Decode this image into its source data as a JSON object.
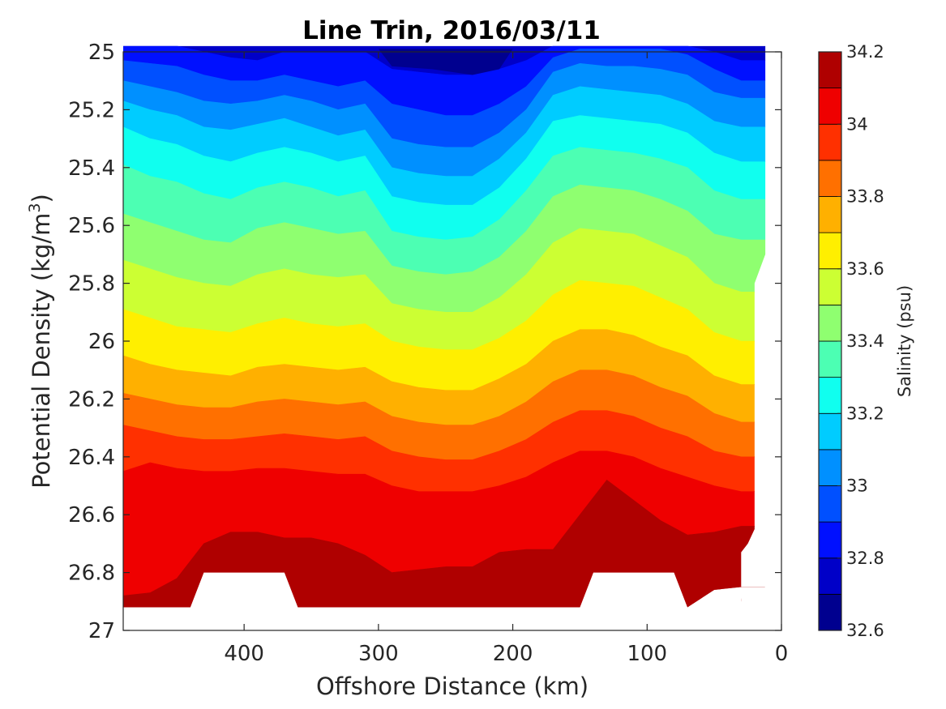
{
  "chart_data": {
    "type": "contourf",
    "title": "Line Trin, 2016/03/11",
    "xlabel": "Offshore Distance (km)",
    "ylabel_main": "Potential Density (kg/m",
    "ylabel_sup": "3",
    "ylabel_close": ")",
    "xlim": [
      490,
      0
    ],
    "ylim": [
      25,
      27
    ],
    "y_reversed": true,
    "x_reversed": true,
    "x_ticks": [
      400,
      300,
      200,
      100,
      0
    ],
    "y_ticks": [
      25,
      25.2,
      25.4,
      25.6,
      25.8,
      26,
      26.2,
      26.4,
      26.6,
      26.8,
      27
    ],
    "x_tick_labels": [
      "400",
      "300",
      "200",
      "100",
      "0"
    ],
    "y_tick_labels": [
      "25",
      "25.2",
      "25.4",
      "25.6",
      "25.8",
      "26",
      "26.2",
      "26.4",
      "26.6",
      "26.8",
      "27"
    ],
    "colorbar": {
      "label": "Salinity (psu)",
      "range": [
        32.6,
        34.2
      ],
      "levels": [
        32.6,
        32.7,
        32.8,
        32.9,
        33.0,
        33.1,
        33.2,
        33.3,
        33.4,
        33.5,
        33.6,
        33.7,
        33.8,
        33.9,
        34.0,
        34.1,
        34.2
      ],
      "ticks": [
        32.6,
        32.8,
        33,
        33.2,
        33.4,
        33.6,
        33.8,
        34,
        34.2
      ],
      "tick_labels": [
        "32.6",
        "32.8",
        "33",
        "33.2",
        "33.4",
        "33.6",
        "33.8",
        "34",
        "34.2"
      ],
      "colors": [
        "#00008f",
        "#0000c8",
        "#0010ff",
        "#0050ff",
        "#0090ff",
        "#00ccff",
        "#10ffef",
        "#4cffb3",
        "#8fff70",
        "#ccff33",
        "#ffef00",
        "#ffb000",
        "#ff7000",
        "#ff3000",
        "#ef0000",
        "#af0000"
      ]
    },
    "contour_boundaries": {
      "note_levels": [
        32.8,
        32.9,
        33.0,
        33.1,
        33.2,
        33.3,
        33.4,
        33.5,
        33.6,
        33.7,
        33.8,
        33.9,
        34.0,
        34.1
      ],
      "x": [
        490,
        470,
        450,
        430,
        410,
        390,
        370,
        350,
        330,
        310,
        290,
        270,
        250,
        230,
        210,
        190,
        170,
        150,
        130,
        110,
        90,
        70,
        50,
        30,
        12
      ],
      "y": [
        [
          24.98,
          24.98,
          24.98,
          25.0,
          25.02,
          25.03,
          25.0,
          25.0,
          25.0,
          25.0,
          25.06,
          25.07,
          25.08,
          25.08,
          25.06,
          25.03,
          24.98,
          24.98,
          24.98,
          24.98,
          24.98,
          24.98,
          25.0,
          25.03,
          25.03
        ],
        [
          25.03,
          25.04,
          25.05,
          25.08,
          25.1,
          25.1,
          25.08,
          25.1,
          25.12,
          25.1,
          25.18,
          25.2,
          25.22,
          25.22,
          25.18,
          25.12,
          25.02,
          24.99,
          24.99,
          24.99,
          24.99,
          25.01,
          25.06,
          25.1,
          25.1
        ],
        [
          25.1,
          25.12,
          25.14,
          25.17,
          25.18,
          25.17,
          25.15,
          25.17,
          25.2,
          25.18,
          25.3,
          25.32,
          25.33,
          25.33,
          25.28,
          25.2,
          25.07,
          25.04,
          25.05,
          25.05,
          25.06,
          25.08,
          25.14,
          25.16,
          25.16
        ],
        [
          25.17,
          25.2,
          25.22,
          25.26,
          25.27,
          25.25,
          25.23,
          25.26,
          25.29,
          25.27,
          25.4,
          25.42,
          25.43,
          25.43,
          25.37,
          25.28,
          25.15,
          25.12,
          25.13,
          25.14,
          25.15,
          25.18,
          25.24,
          25.26,
          25.26
        ],
        [
          25.26,
          25.3,
          25.32,
          25.36,
          25.38,
          25.35,
          25.33,
          25.35,
          25.38,
          25.36,
          25.5,
          25.52,
          25.53,
          25.53,
          25.47,
          25.37,
          25.24,
          25.22,
          25.23,
          25.24,
          25.25,
          25.28,
          25.35,
          25.38,
          25.38
        ],
        [
          25.39,
          25.43,
          25.45,
          25.49,
          25.51,
          25.47,
          25.45,
          25.47,
          25.5,
          25.48,
          25.62,
          25.64,
          25.65,
          25.64,
          25.58,
          25.48,
          25.36,
          25.33,
          25.34,
          25.35,
          25.37,
          25.4,
          25.48,
          25.51,
          25.51
        ],
        [
          25.56,
          25.59,
          25.62,
          25.65,
          25.66,
          25.61,
          25.59,
          25.61,
          25.63,
          25.62,
          25.74,
          25.76,
          25.77,
          25.76,
          25.71,
          25.62,
          25.5,
          25.46,
          25.47,
          25.48,
          25.51,
          25.55,
          25.63,
          25.65,
          25.65
        ],
        [
          25.72,
          25.75,
          25.78,
          25.8,
          25.81,
          25.77,
          25.75,
          25.77,
          25.78,
          25.77,
          25.87,
          25.89,
          25.9,
          25.9,
          25.85,
          25.77,
          25.66,
          25.61,
          25.62,
          25.63,
          25.67,
          25.71,
          25.8,
          25.83,
          25.83
        ],
        [
          25.89,
          25.92,
          25.95,
          25.96,
          25.97,
          25.94,
          25.92,
          25.94,
          25.95,
          25.94,
          26.0,
          26.02,
          26.03,
          26.03,
          25.99,
          25.93,
          25.84,
          25.79,
          25.8,
          25.81,
          25.85,
          25.89,
          25.97,
          26.0,
          26.0
        ],
        [
          26.05,
          26.08,
          26.1,
          26.11,
          26.12,
          26.09,
          26.08,
          26.09,
          26.1,
          26.09,
          26.14,
          26.16,
          26.17,
          26.17,
          26.13,
          26.08,
          26.0,
          25.96,
          25.96,
          25.98,
          26.02,
          26.05,
          26.12,
          26.15,
          26.15
        ],
        [
          26.18,
          26.2,
          26.22,
          26.23,
          26.23,
          26.21,
          26.2,
          26.21,
          26.22,
          26.21,
          26.26,
          26.28,
          26.29,
          26.29,
          26.26,
          26.21,
          26.14,
          26.1,
          26.1,
          26.12,
          26.16,
          26.19,
          26.25,
          26.28,
          26.28
        ],
        [
          26.29,
          26.31,
          26.33,
          26.34,
          26.34,
          26.33,
          26.32,
          26.33,
          26.34,
          26.33,
          26.38,
          26.4,
          26.41,
          26.41,
          26.38,
          26.34,
          26.28,
          26.24,
          26.24,
          26.26,
          26.3,
          26.33,
          26.38,
          26.4,
          26.4
        ],
        [
          26.45,
          26.42,
          26.44,
          26.45,
          26.45,
          26.44,
          26.44,
          26.45,
          26.46,
          26.46,
          26.5,
          26.52,
          26.52,
          26.52,
          26.5,
          26.47,
          26.42,
          26.38,
          26.38,
          26.4,
          26.44,
          26.47,
          26.5,
          26.52,
          26.52
        ],
        [
          26.88,
          26.87,
          26.82,
          26.7,
          26.66,
          26.66,
          26.68,
          26.68,
          26.7,
          26.74,
          26.8,
          26.79,
          26.78,
          26.78,
          26.73,
          26.72,
          26.72,
          26.6,
          26.48,
          26.55,
          26.62,
          26.67,
          26.66,
          26.64,
          26.64
        ],
        [
          26.92,
          26.92,
          26.92,
          26.92,
          26.92,
          26.92,
          26.92,
          26.92,
          26.92,
          26.92,
          26.92,
          26.92,
          26.92,
          26.92,
          26.92,
          26.92,
          26.92,
          26.92,
          26.92,
          26.92,
          26.92,
          26.92,
          26.86,
          26.85,
          26.85
        ]
      ],
      "data_region_right_edge_x": [
        12,
        12,
        12,
        12,
        20,
        20,
        20,
        20,
        20,
        25,
        30,
        30
      ],
      "data_region_right_edge_y": [
        24.98,
        25.3,
        25.5,
        25.7,
        25.8,
        26.0,
        26.4,
        26.6,
        26.65,
        26.7,
        26.73,
        26.9
      ],
      "bottom_gaps": [
        {
          "x_start": 440,
          "x_end": 360,
          "y_top": 26.8
        },
        {
          "x_start": 150,
          "x_end": 70,
          "y_top": 26.8
        }
      ]
    }
  }
}
